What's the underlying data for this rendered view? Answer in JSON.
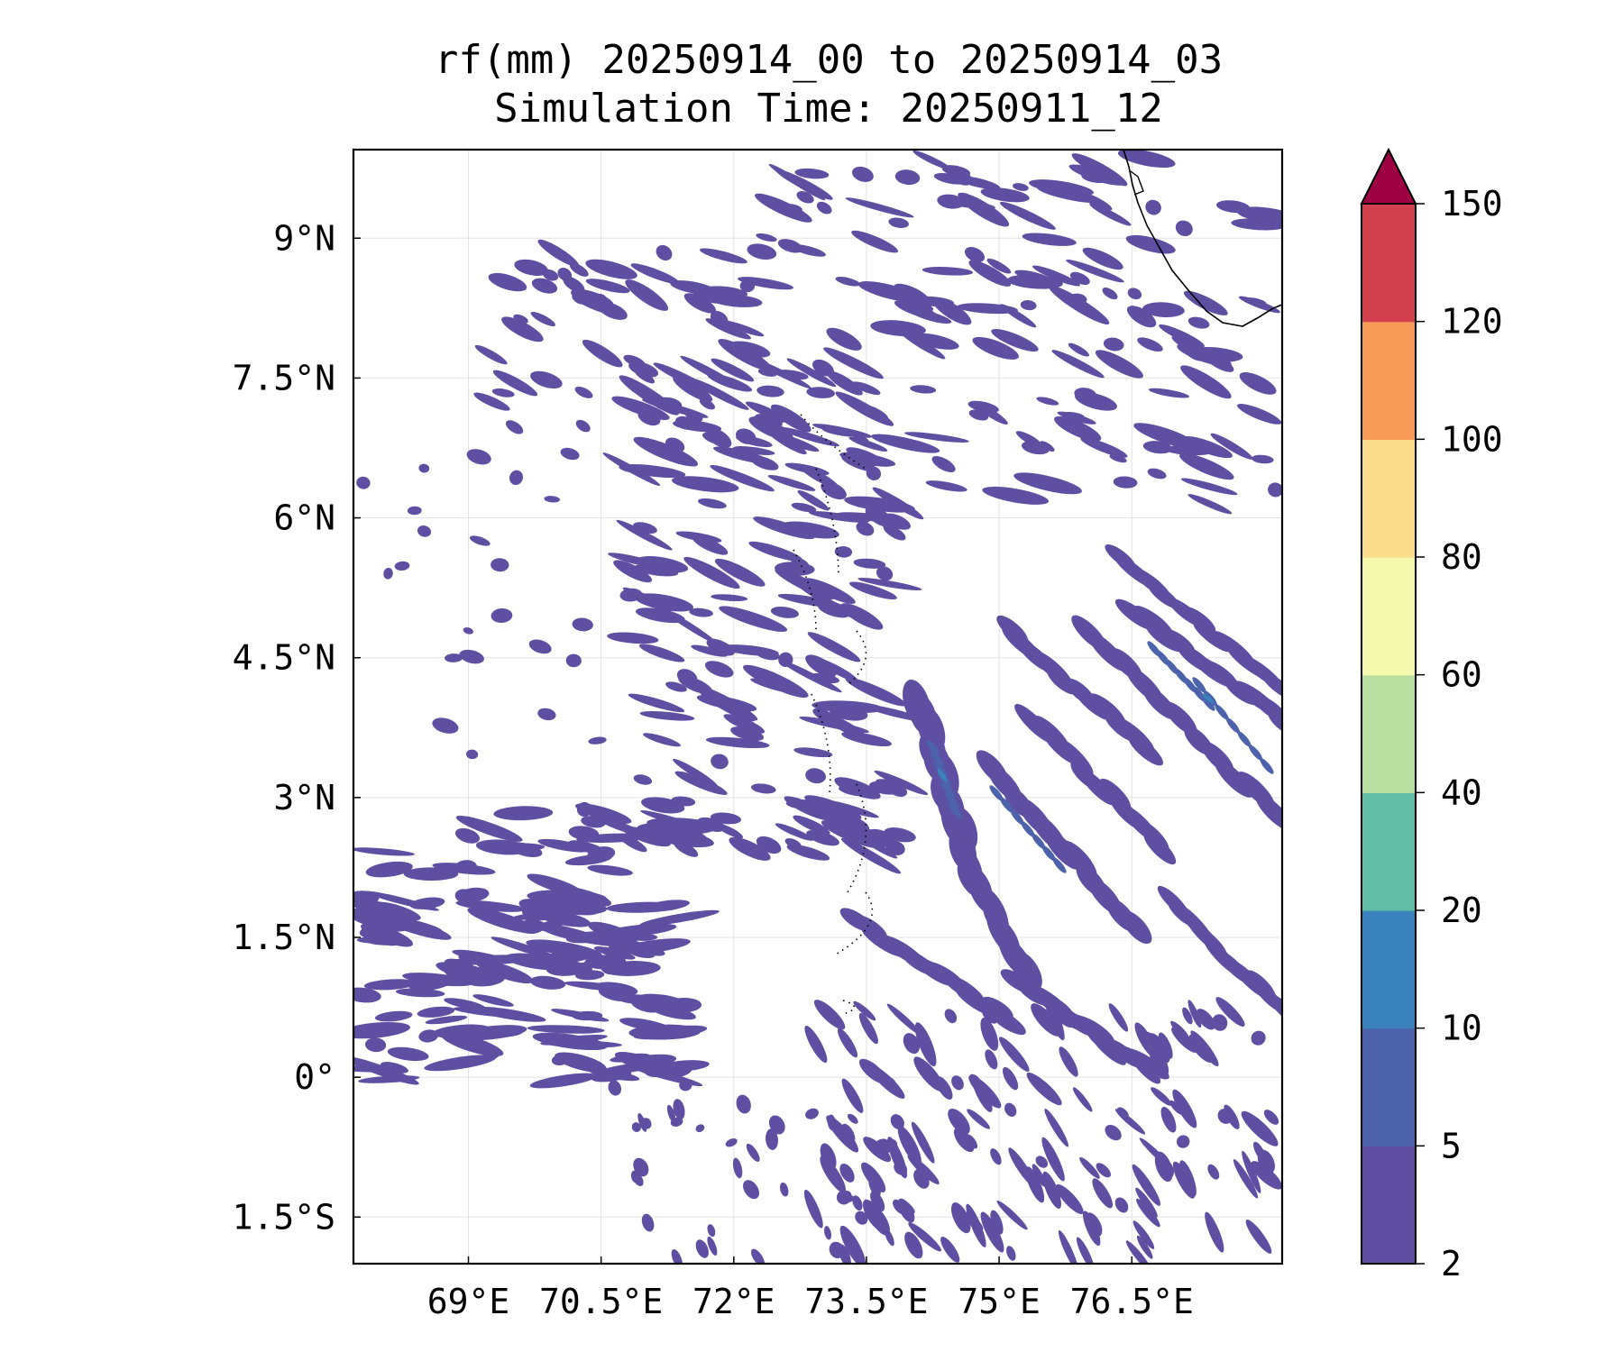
{
  "title": {
    "line1": "rf(mm) 20250914_00 to 20250914_03",
    "line2": "Simulation Time: 20250911_12"
  },
  "map": {
    "lon_range": [
      67.7,
      78.2
    ],
    "lat_range": [
      -2.0,
      9.95
    ],
    "lon_ticks": [
      {
        "value": 69,
        "label": "69°E"
      },
      {
        "value": 70.5,
        "label": "70.5°E"
      },
      {
        "value": 72,
        "label": "72°E"
      },
      {
        "value": 73.5,
        "label": "73.5°E"
      },
      {
        "value": 75,
        "label": "75°E"
      },
      {
        "value": 76.5,
        "label": "76.5°E"
      }
    ],
    "lat_ticks": [
      {
        "value": 9,
        "label": "9°N"
      },
      {
        "value": 7.5,
        "label": "7.5°N"
      },
      {
        "value": 6,
        "label": "6°N"
      },
      {
        "value": 4.5,
        "label": "4.5°N"
      },
      {
        "value": 3,
        "label": "3°N"
      },
      {
        "value": 1.5,
        "label": "1.5°N"
      },
      {
        "value": 0,
        "label": "0°"
      },
      {
        "value": -1.5,
        "label": "1.5°S"
      }
    ],
    "gridlines": true,
    "coastline_color": "#000000",
    "rain_color_dominant": "#5a55a5"
  },
  "colorbar": {
    "levels": [
      2,
      5,
      10,
      20,
      40,
      60,
      80,
      100,
      120,
      150
    ],
    "labels": [
      "2",
      "5",
      "10",
      "20",
      "40",
      "60",
      "80",
      "100",
      "120",
      "150"
    ],
    "colors": [
      "#5e4fa2",
      "#4c62ab",
      "#3a82bd",
      "#63bea7",
      "#b9e0a0",
      "#f3f8ad",
      "#fbdc8a",
      "#f89b59",
      "#d3404e"
    ],
    "extend_color": "#9e0142",
    "extend": "max"
  }
}
